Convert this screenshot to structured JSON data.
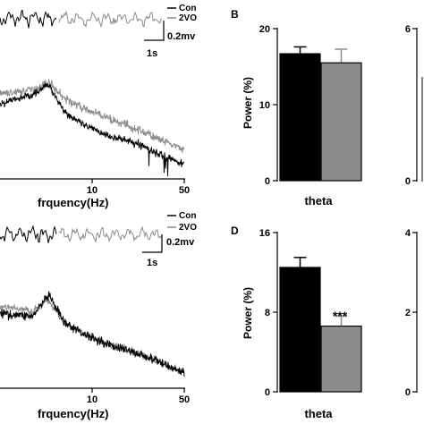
{
  "chart_data": [
    {
      "panel": "A-top",
      "type": "line",
      "xlabel": "frquency(Hz)",
      "x_ticks": [
        "10",
        "50"
      ],
      "xscale": "log",
      "series": [
        {
          "name": "Con",
          "color": "#000000",
          "trend": [
            [
              1,
              0.62
            ],
            [
              2,
              0.7
            ],
            [
              2.8,
              0.78
            ],
            [
              4,
              0.55
            ],
            [
              6,
              0.44
            ],
            [
              10,
              0.36
            ],
            [
              20,
              0.28
            ],
            [
              30,
              0.2
            ],
            [
              50,
              0.12
            ]
          ]
        },
        {
          "name": "2VO",
          "color": "#909090",
          "trend": [
            [
              1,
              0.7
            ],
            [
              2,
              0.74
            ],
            [
              2.8,
              0.8
            ],
            [
              4,
              0.66
            ],
            [
              6,
              0.58
            ],
            [
              10,
              0.5
            ],
            [
              20,
              0.4
            ],
            [
              30,
              0.32
            ],
            [
              50,
              0.24
            ]
          ]
        }
      ],
      "scale_bar": {
        "time": "1s",
        "amplitude": "0.2mv"
      }
    },
    {
      "panel": "A-bottom",
      "type": "line",
      "xlabel": "frquency(Hz)",
      "x_ticks": [
        "10",
        "50"
      ],
      "xscale": "log",
      "series": [
        {
          "name": "Con",
          "color": "#000000",
          "trend": [
            [
              1,
              0.58
            ],
            [
              2,
              0.56
            ],
            [
              2.8,
              0.72
            ],
            [
              4,
              0.5
            ],
            [
              6,
              0.42
            ],
            [
              10,
              0.34
            ],
            [
              20,
              0.26
            ],
            [
              30,
              0.2
            ],
            [
              50,
              0.12
            ]
          ]
        },
        {
          "name": "2VO",
          "color": "#909090",
          "trend": [
            [
              1,
              0.64
            ],
            [
              2,
              0.6
            ],
            [
              2.8,
              0.68
            ],
            [
              4,
              0.5
            ],
            [
              6,
              0.42
            ],
            [
              10,
              0.34
            ],
            [
              20,
              0.26
            ],
            [
              30,
              0.2
            ],
            [
              50,
              0.13
            ]
          ]
        }
      ],
      "scale_bar": {
        "time": "1s",
        "amplitude": "0.2mv"
      }
    },
    {
      "panel": "B",
      "type": "bar",
      "label": "B",
      "ylabel": "Power (%)",
      "xlabel": "theta",
      "ylim": [
        0,
        20
      ],
      "y_ticks": [
        "0",
        "10",
        "20"
      ],
      "categories": [
        "Con",
        "2VO"
      ],
      "values": [
        16.7,
        15.5
      ],
      "errors": [
        0.9,
        1.8
      ],
      "colors": [
        "#000000",
        "#8c8c8c"
      ],
      "annotation": ""
    },
    {
      "panel": "D",
      "type": "bar",
      "label": "D",
      "ylabel": "Power (%)",
      "xlabel": "theta",
      "ylim": [
        0,
        16
      ],
      "y_ticks": [
        "0",
        "8",
        "16"
      ],
      "categories": [
        "Con",
        "2VO"
      ],
      "values": [
        12.5,
        6.6
      ],
      "errors": [
        1.0,
        1.0
      ],
      "colors": [
        "#000000",
        "#8c8c8c"
      ],
      "annotation": "***"
    },
    {
      "panel": "right-top-partial",
      "type": "bar",
      "y_ticks": [
        "0",
        "6"
      ]
    },
    {
      "panel": "right-bottom-partial",
      "type": "bar",
      "y_ticks": [
        "0",
        "2",
        "4"
      ]
    }
  ]
}
